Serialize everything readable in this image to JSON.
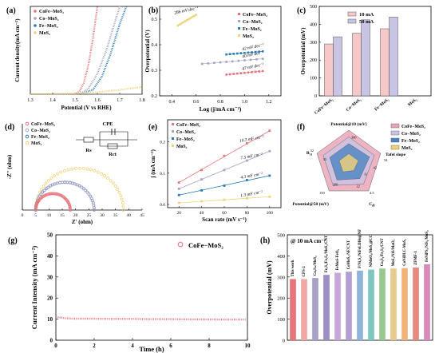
{
  "chart_data": [
    {
      "panel": "(a)",
      "type": "line",
      "xlabel": "Potential (V vs RHE)",
      "ylabel": "Current density(mA cm⁻²)",
      "xticks": [
        "1.3",
        "1.4",
        "1.5",
        "1.6",
        "1.7",
        "1.8"
      ],
      "xlim": [
        1.3,
        1.8
      ],
      "ylim": [
        0,
        60
      ],
      "legend_position": "top-left",
      "series": [
        {
          "name": "CoFe−MoS₂",
          "color": "#e8737a",
          "x": [
            1.5,
            1.52,
            1.54,
            1.56,
            1.58,
            1.6
          ],
          "y": [
            0,
            2,
            8,
            20,
            38,
            60
          ]
        },
        {
          "name": "Co−MoS₂",
          "color": "#a7a0c8",
          "x": [
            1.52,
            1.56,
            1.6,
            1.64,
            1.68,
            1.7
          ],
          "y": [
            0,
            4,
            14,
            30,
            50,
            60
          ]
        },
        {
          "name": "Fe−MoS₂",
          "color": "#2a7ab8",
          "x": [
            1.52,
            1.58,
            1.62,
            1.66,
            1.7,
            1.73
          ],
          "y": [
            0,
            3,
            12,
            28,
            48,
            60
          ]
        },
        {
          "name": "MoS₂",
          "color": "#f2d279",
          "x": [
            1.3,
            1.5,
            1.6,
            1.7,
            1.8
          ],
          "y": [
            0,
            0.5,
            1.5,
            3,
            5
          ]
        }
      ]
    },
    {
      "panel": "(b)",
      "type": "scatter",
      "xlabel": "Log (j/mA cm⁻²)",
      "ylabel": "Overpotential (V)",
      "xticks": [
        "0.4",
        "0.6",
        "0.8",
        "1.0",
        "1.2"
      ],
      "yticks": [
        "0.2",
        "0.3",
        "0.4",
        "0.5"
      ],
      "xlim": [
        0.3,
        1.3
      ],
      "ylim": [
        0.2,
        0.55
      ],
      "legend_position": "top-right",
      "series": [
        {
          "name": "CoFe−MoS₂",
          "color": "#e8737a",
          "x": [
            0.85,
            1.15
          ],
          "y": [
            0.283,
            0.297
          ],
          "label": "47 mV dec⁻¹"
        },
        {
          "name": "Co−MoS₂",
          "color": "#a7a0c8",
          "x": [
            0.65,
            1.15
          ],
          "y": [
            0.325,
            0.345
          ],
          "label": "40 mV dec⁻¹"
        },
        {
          "name": "Fe−MoS₂",
          "color": "#2a7ab8",
          "x": [
            0.85,
            1.15
          ],
          "y": [
            0.362,
            0.374
          ],
          "label": "42 mV dec⁻¹"
        },
        {
          "name": "MoS₂",
          "color": "#f2d279",
          "x": [
            0.45,
            0.6
          ],
          "y": [
            0.475,
            0.517
          ],
          "label": "286 mV dec⁻¹"
        }
      ]
    },
    {
      "panel": "(c)",
      "type": "bar",
      "ylabel": "Overpotential (mV)",
      "categories": [
        "CoFe−MoS₂",
        "Co−MoS₂",
        "Fe−MoS₂",
        "MoS₂"
      ],
      "yticks": [
        "0",
        "100",
        "200",
        "300",
        "400",
        "500"
      ],
      "ylim": [
        0,
        500
      ],
      "legend_position": "top-left",
      "series": [
        {
          "name": "10 mA",
          "color": "#f6c9c8",
          "values": [
            290,
            350,
            375,
            0
          ]
        },
        {
          "name": "50 mA",
          "color": "#c7c5e3",
          "values": [
            330,
            425,
            440,
            0
          ]
        }
      ]
    },
    {
      "panel": "(d)",
      "type": "scatter",
      "xlabel": "Z' (ohm)",
      "ylabel": "-Z'' (ohm)",
      "xticks": [
        "0",
        "5",
        "10",
        "15",
        "20",
        "25",
        "30",
        "35",
        "40",
        "45"
      ],
      "xlim": [
        0,
        45
      ],
      "ylim": [
        0,
        45
      ],
      "legend_position": "top-left",
      "circuit": {
        "title": "CPE",
        "labels": [
          "Rs",
          "Rct"
        ]
      },
      "series": [
        {
          "name": "CoFe−MoS₂",
          "color": "#e8737a",
          "x_start": 5,
          "x_end": 18
        },
        {
          "name": "Co−MoS₂",
          "color": "#a7a0c8",
          "x_start": 5,
          "x_end": 27
        },
        {
          "name": "Fe−MoS₂",
          "color": "#2a7ab8",
          "x_start": 5,
          "x_end": 27
        },
        {
          "name": "MoS₂",
          "color": "#f2d279",
          "x_start": 5,
          "x_end": 38
        }
      ]
    },
    {
      "panel": "(e)",
      "type": "scatter",
      "xlabel": "Scan rate (mV s⁻¹)",
      "ylabel": "j (mA cm⁻²)",
      "xticks": [
        "20",
        "40",
        "60",
        "80",
        "100"
      ],
      "yticks": [
        "0.0",
        "0.1",
        "0.2"
      ],
      "xlim": [
        10,
        110
      ],
      "ylim": [
        -0.01,
        0.27
      ],
      "legend_position": "top-left",
      "series": [
        {
          "name": "CoFe−MoS₂",
          "color": "#e8737a",
          "x": [
            20,
            40,
            60,
            80,
            100
          ],
          "y": [
            0.07,
            0.11,
            0.155,
            0.195,
            0.235
          ],
          "label": "10.3 mF cm⁻²"
        },
        {
          "name": "Co−MoS₂",
          "color": "#a7a0c8",
          "x": [
            20,
            40,
            60,
            80,
            100
          ],
          "y": [
            0.05,
            0.08,
            0.11,
            0.14,
            0.17
          ],
          "label": "7.5 mF cm⁻²"
        },
        {
          "name": "Fe−MoS₂",
          "color": "#2a7ab8",
          "x": [
            20,
            40,
            60,
            80,
            100
          ],
          "y": [
            0.03,
            0.045,
            0.06,
            0.078,
            0.092
          ],
          "label": "4.3 mF cm⁻²"
        },
        {
          "name": "MoS₂",
          "color": "#f2d279",
          "x": [
            20,
            40,
            60,
            80,
            100
          ],
          "y": [
            0.005,
            0.01,
            0.015,
            0.02,
            0.025
          ],
          "label": "1.3 mF cm⁻²"
        }
      ]
    },
    {
      "panel": "(f)",
      "type": "radar",
      "axes": [
        "Potential@10 (mV)",
        "Tafel slope",
        "Cdl",
        "Potential@50 (mV)",
        "Rct"
      ],
      "axis_tick_labels": {
        "Tafel slope": "54",
        "Cdl": "4.5",
        "Potential@50 (mV)": "150",
        "Potential@10 (mV)": "",
        "Rct": "32"
      },
      "ring_labels": [
        "200",
        "300",
        "33",
        "22",
        "11",
        "43"
      ],
      "legend_position": "right",
      "series": [
        {
          "name": "CoFe−MoS₂",
          "color": "#e8a3b4",
          "values": [
            1.0,
            1.0,
            1.0,
            1.0,
            1.0
          ]
        },
        {
          "name": "Co−MoS₂",
          "color": "#c9c4e6",
          "values": [
            0.8,
            0.8,
            0.75,
            0.8,
            0.8
          ]
        },
        {
          "name": "Fe−MoS₂",
          "color": "#4a83c2",
          "values": [
            0.6,
            0.65,
            0.55,
            0.6,
            0.6
          ]
        },
        {
          "name": "MoS₂",
          "color": "#f2d279",
          "values": [
            0.3,
            0.3,
            0.25,
            0.3,
            0.3
          ]
        }
      ]
    },
    {
      "panel": "(g)",
      "type": "scatter",
      "xlabel": "Time (h)",
      "ylabel": "Current Intensity (mA cm⁻²)",
      "xticks": [
        "0",
        "2",
        "4",
        "6",
        "8",
        "10"
      ],
      "yticks": [
        "0",
        "10",
        "20",
        "30",
        "40",
        "50"
      ],
      "xlim": [
        0,
        10
      ],
      "ylim": [
        0,
        50
      ],
      "legend_position": "top-right",
      "series": [
        {
          "name": "CoFe−MoS₂",
          "color": "#e8737a",
          "x": [
            0.1,
            0.5,
            1,
            2,
            3,
            4,
            5,
            6,
            7,
            8,
            9,
            9.9
          ],
          "y": [
            11,
            10.4,
            10.2,
            10.2,
            10.1,
            10.1,
            10,
            10,
            9.9,
            9.9,
            9.8,
            9.8
          ]
        }
      ]
    },
    {
      "panel": "(h)",
      "type": "bar",
      "ylabel": "Overpotential (mV)",
      "annotation": "@ 10 mA cm⁻²",
      "yticks": [
        "0",
        "100",
        "200",
        "300",
        "400",
        "500"
      ],
      "ylim": [
        0,
        500
      ],
      "categories": [
        "This work",
        "CFS-2",
        "CoₓSₙ/MoS₂",
        "Fe₃S₄/Fe₇S₈/MoS₂/CNT",
        "FeMoS-FeO₀",
        "CoMoS₄-NF/CNT",
        "F/Ni₃S₂/NiFeLDHs@NF",
        "NiMoO₄/MoS₂@CC",
        "Co₃S₄/Fe₃S₄/CNT",
        "MoS₂/NiS/MoO₃",
        "CoNiDLC-MoS₂",
        "ZFMF-1",
        "FeNiPS₂/NiS₂/MoS₂"
      ],
      "values": [
        290,
        290,
        295,
        310,
        320,
        325,
        330,
        335,
        340,
        340,
        342,
        345,
        360
      ],
      "colors": [
        "#e8737a",
        "#f0a7a5",
        "#a7a0c8",
        "#9b8ec4",
        "#c7a7d9",
        "#b49fd3",
        "#8fb3d9",
        "#7ec7c0",
        "#96c88f",
        "#e8c98e",
        "#f2b27a",
        "#e8897f",
        "#d88bb8"
      ]
    }
  ]
}
